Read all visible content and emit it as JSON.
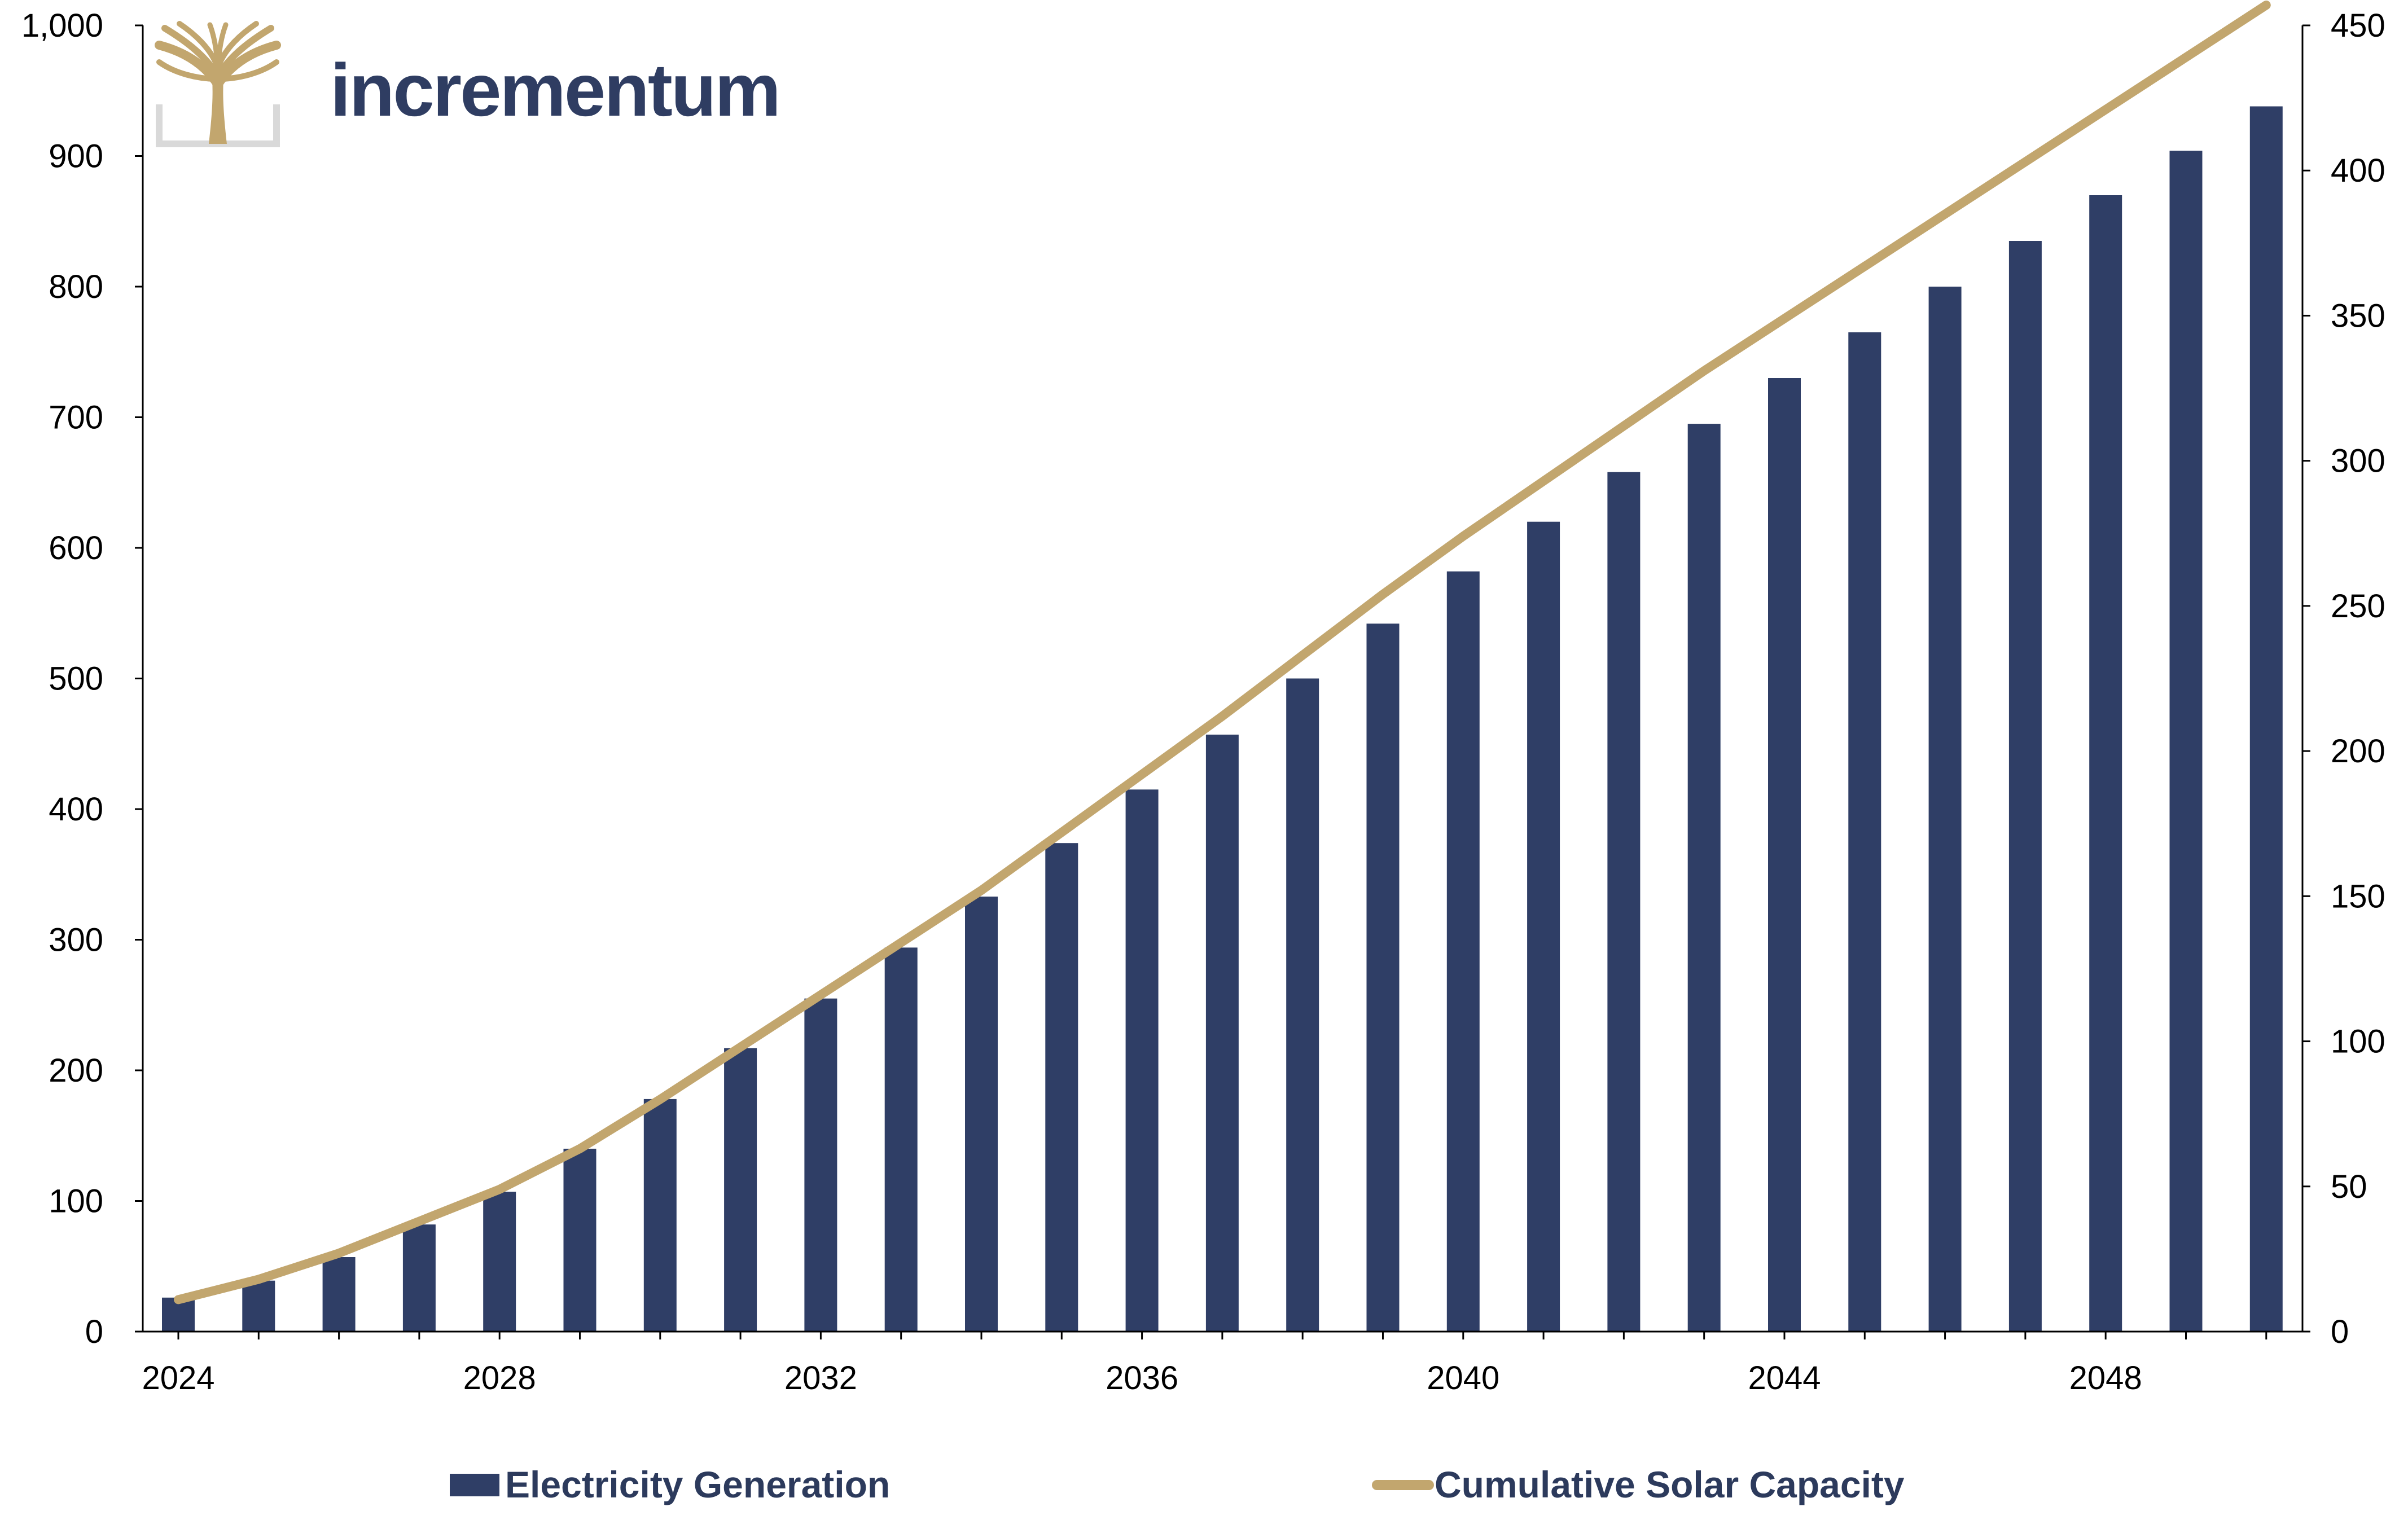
{
  "logo": {
    "text": "incrementum",
    "tree_color": "#c2a66e",
    "bracket_color": "#d9d9d9",
    "text_color": "#2f3d62"
  },
  "chart_data": {
    "type": "bar",
    "x": [
      2024,
      2025,
      2026,
      2027,
      2028,
      2029,
      2030,
      2031,
      2032,
      2033,
      2034,
      2035,
      2036,
      2037,
      2038,
      2039,
      2040,
      2041,
      2042,
      2043,
      2044,
      2045,
      2046,
      2047,
      2048,
      2049,
      2050
    ],
    "x_tick_labels": [
      "2024",
      "2028",
      "2032",
      "2036",
      "2040",
      "2044",
      "2048"
    ],
    "y_left_ticks": [
      "0",
      "100",
      "200",
      "300",
      "400",
      "500",
      "600",
      "700",
      "800",
      "900",
      "1,000"
    ],
    "y_right_ticks": [
      "0",
      "50",
      "100",
      "150",
      "200",
      "250",
      "300",
      "350",
      "400",
      "450"
    ],
    "ylim_left": [
      0,
      1000
    ],
    "ylim_right": [
      0,
      450
    ],
    "grid": false,
    "legend_position": "bottom",
    "series": [
      {
        "name": "Electricity Generation",
        "type": "bar",
        "axis": "left",
        "color": "#2f3e66",
        "values": [
          26,
          39,
          57,
          82,
          107,
          140,
          178,
          217,
          255,
          294,
          333,
          374,
          415,
          457,
          500,
          542,
          582,
          620,
          658,
          695,
          730,
          765,
          800,
          835,
          870,
          904,
          938
        ]
      },
      {
        "name": "Cumulative Solar Capacity",
        "type": "line",
        "axis": "right",
        "color": "#c2a66e",
        "values": [
          11,
          18,
          27,
          38,
          49,
          63,
          80,
          98,
          116,
          134,
          152,
          172,
          192,
          212,
          233,
          254,
          274,
          293,
          312,
          331,
          349,
          367,
          385,
          403,
          421,
          439,
          457
        ]
      }
    ]
  }
}
